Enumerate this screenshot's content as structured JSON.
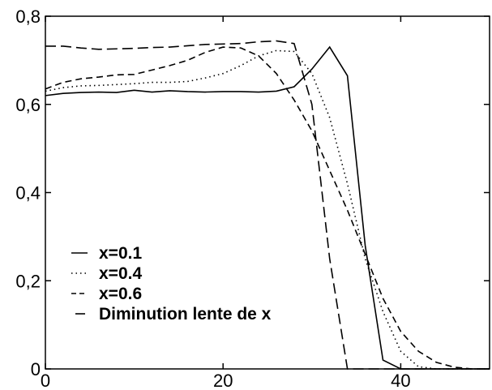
{
  "chart_data": {
    "type": "line",
    "xlim": [
      0,
      50
    ],
    "ylim": [
      0,
      0.8
    ],
    "x_ticks": [
      {
        "value": 0,
        "label": "0"
      },
      {
        "value": 20,
        "label": "20"
      },
      {
        "value": 40,
        "label": "40"
      }
    ],
    "y_ticks": [
      {
        "value": 0,
        "label": "0"
      },
      {
        "value": 0.2,
        "label": "0,2"
      },
      {
        "value": 0.4,
        "label": "0,4"
      },
      {
        "value": 0.6,
        "label": "0,6"
      },
      {
        "value": 0.8,
        "label": "0,8"
      }
    ],
    "grid": false,
    "legend_position": "bottom-left",
    "series": [
      {
        "name": "x=0.1",
        "style": "solid",
        "color": "#000000",
        "points": [
          [
            0,
            0.62
          ],
          [
            2,
            0.625
          ],
          [
            4,
            0.627
          ],
          [
            6,
            0.628
          ],
          [
            8,
            0.627
          ],
          [
            10,
            0.632
          ],
          [
            12,
            0.628
          ],
          [
            14,
            0.631
          ],
          [
            16,
            0.629
          ],
          [
            18,
            0.628
          ],
          [
            20,
            0.629
          ],
          [
            22,
            0.629
          ],
          [
            24,
            0.628
          ],
          [
            26,
            0.63
          ],
          [
            28,
            0.64
          ],
          [
            30,
            0.68
          ],
          [
            32,
            0.73
          ],
          [
            34,
            0.665
          ],
          [
            36,
            0.28
          ],
          [
            38,
            0.02
          ],
          [
            40,
            0.0
          ],
          [
            42,
            0.0
          ],
          [
            44,
            0.0
          ],
          [
            46,
            0.0
          ],
          [
            48,
            0.0
          ],
          [
            50,
            0.0
          ]
        ]
      },
      {
        "name": "x=0.4",
        "style": "dotted",
        "color": "#000000",
        "points": [
          [
            0,
            0.63
          ],
          [
            2,
            0.638
          ],
          [
            4,
            0.642
          ],
          [
            6,
            0.643
          ],
          [
            8,
            0.645
          ],
          [
            10,
            0.647
          ],
          [
            12,
            0.65
          ],
          [
            14,
            0.65
          ],
          [
            16,
            0.652
          ],
          [
            18,
            0.66
          ],
          [
            20,
            0.67
          ],
          [
            22,
            0.688
          ],
          [
            24,
            0.71
          ],
          [
            26,
            0.722
          ],
          [
            28,
            0.72
          ],
          [
            30,
            0.67
          ],
          [
            32,
            0.57
          ],
          [
            34,
            0.42
          ],
          [
            36,
            0.25
          ],
          [
            38,
            0.13
          ],
          [
            40,
            0.04
          ],
          [
            42,
            0.005
          ],
          [
            44,
            0.0
          ],
          [
            46,
            0.0
          ],
          [
            48,
            0.0
          ],
          [
            50,
            0.0
          ]
        ]
      },
      {
        "name": "x=0.6",
        "style": "dashed",
        "color": "#000000",
        "points": [
          [
            0,
            0.635
          ],
          [
            2,
            0.65
          ],
          [
            4,
            0.658
          ],
          [
            6,
            0.662
          ],
          [
            8,
            0.667
          ],
          [
            10,
            0.668
          ],
          [
            12,
            0.678
          ],
          [
            14,
            0.688
          ],
          [
            16,
            0.7
          ],
          [
            18,
            0.718
          ],
          [
            20,
            0.73
          ],
          [
            22,
            0.728
          ],
          [
            24,
            0.71
          ],
          [
            26,
            0.67
          ],
          [
            28,
            0.61
          ],
          [
            30,
            0.54
          ],
          [
            32,
            0.45
          ],
          [
            34,
            0.36
          ],
          [
            36,
            0.26
          ],
          [
            38,
            0.16
          ],
          [
            40,
            0.085
          ],
          [
            42,
            0.04
          ],
          [
            44,
            0.015
          ],
          [
            46,
            0.004
          ],
          [
            48,
            0.0
          ],
          [
            50,
            0.0
          ]
        ]
      },
      {
        "name": "Diminution lente de x",
        "style": "long-dash",
        "color": "#000000",
        "points": [
          [
            0,
            0.732
          ],
          [
            2,
            0.732
          ],
          [
            4,
            0.728
          ],
          [
            6,
            0.725
          ],
          [
            8,
            0.726
          ],
          [
            10,
            0.727
          ],
          [
            12,
            0.729
          ],
          [
            14,
            0.73
          ],
          [
            16,
            0.733
          ],
          [
            18,
            0.736
          ],
          [
            20,
            0.737
          ],
          [
            22,
            0.738
          ],
          [
            24,
            0.742
          ],
          [
            26,
            0.744
          ],
          [
            28,
            0.738
          ],
          [
            30,
            0.6
          ],
          [
            32,
            0.25
          ],
          [
            34,
            0.0
          ],
          [
            36,
            0.0
          ],
          [
            38,
            0.0
          ],
          [
            40,
            0.0
          ],
          [
            42,
            0.0
          ],
          [
            44,
            0.0
          ],
          [
            46,
            0.0
          ],
          [
            48,
            0.0
          ],
          [
            50,
            0.0
          ]
        ]
      }
    ]
  }
}
